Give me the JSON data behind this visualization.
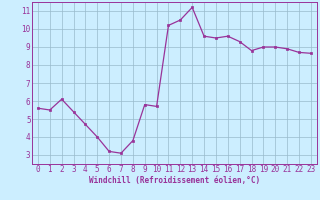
{
  "x": [
    0,
    1,
    2,
    3,
    4,
    5,
    6,
    7,
    8,
    9,
    10,
    11,
    12,
    13,
    14,
    15,
    16,
    17,
    18,
    19,
    20,
    21,
    22,
    23
  ],
  "y": [
    5.6,
    5.5,
    6.1,
    5.4,
    4.7,
    4.0,
    3.2,
    3.1,
    3.8,
    5.8,
    5.7,
    10.2,
    10.5,
    11.2,
    9.6,
    9.5,
    9.6,
    9.3,
    8.8,
    9.0,
    9.0,
    8.9,
    8.7,
    8.65
  ],
  "line_color": "#993399",
  "marker": "s",
  "marker_size": 2,
  "linewidth": 0.9,
  "bg_color": "#cceeff",
  "grid_color": "#99bbcc",
  "xlabel": "Windchill (Refroidissement éolien,°C)",
  "xlabel_color": "#993399",
  "tick_color": "#993399",
  "xlim": [
    -0.5,
    23.5
  ],
  "ylim": [
    2.5,
    11.5
  ],
  "yticks": [
    3,
    4,
    5,
    6,
    7,
    8,
    9,
    10,
    11
  ],
  "xticks": [
    0,
    1,
    2,
    3,
    4,
    5,
    6,
    7,
    8,
    9,
    10,
    11,
    12,
    13,
    14,
    15,
    16,
    17,
    18,
    19,
    20,
    21,
    22,
    23
  ],
  "tick_fontsize": 5.5,
  "xlabel_fontsize": 5.5
}
